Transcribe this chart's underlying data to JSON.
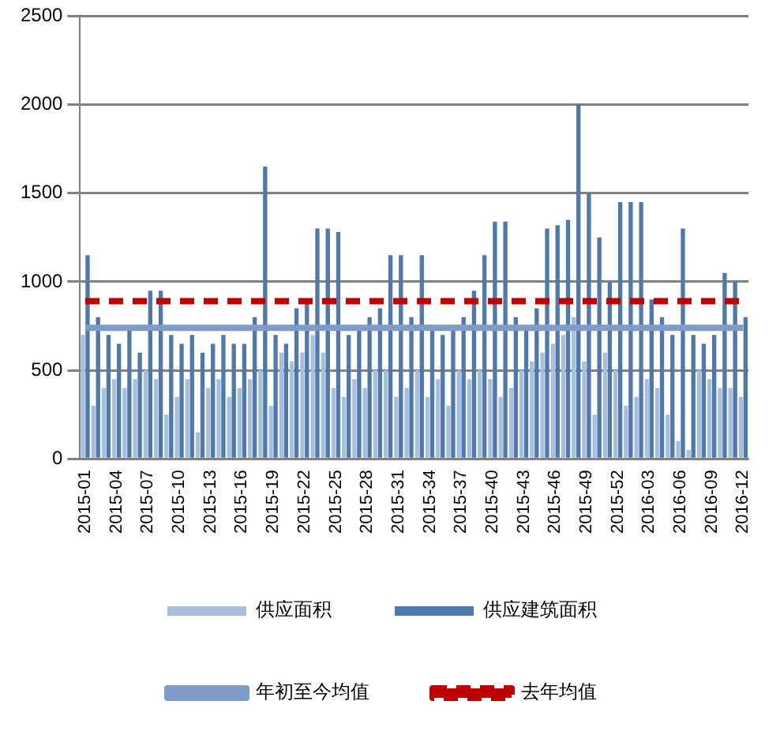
{
  "chart_data": {
    "type": "bar",
    "categories": [
      "2015-01",
      null,
      null,
      "2015-04",
      null,
      null,
      "2015-07",
      null,
      null,
      "2015-10",
      null,
      null,
      "2015-13",
      null,
      null,
      "2015-16",
      null,
      null,
      "2015-19",
      null,
      null,
      "2015-22",
      null,
      null,
      "2015-25",
      null,
      null,
      "2015-28",
      null,
      null,
      "2015-31",
      null,
      null,
      "2015-34",
      null,
      null,
      "2015-37",
      null,
      null,
      "2015-40",
      null,
      null,
      "2015-43",
      null,
      null,
      "2015-46",
      null,
      null,
      "2015-49",
      null,
      null,
      "2015-52",
      null,
      null,
      "2016-03",
      null,
      null,
      "2016-06",
      null,
      null,
      "2016-09",
      null,
      null,
      "2016-12"
    ],
    "series": [
      {
        "name": "供应面积",
        "color": "#a7bfdc",
        "values": [
          700,
          300,
          400,
          450,
          400,
          450,
          500,
          450,
          250,
          350,
          450,
          150,
          400,
          450,
          350,
          400,
          450,
          500,
          300,
          600,
          550,
          600,
          700,
          600,
          400,
          350,
          450,
          400,
          500,
          500,
          350,
          400,
          500,
          350,
          450,
          300,
          500,
          450,
          500,
          450,
          350,
          400,
          500,
          550,
          600,
          650,
          700,
          800,
          550,
          250,
          600,
          500,
          300,
          350,
          450,
          400,
          250,
          100,
          50,
          500,
          450,
          400,
          400,
          350
        ]
      },
      {
        "name": "供应建筑面积",
        "color": "#4f79ac",
        "values": [
          1150,
          800,
          700,
          650,
          750,
          600,
          950,
          950,
          700,
          650,
          700,
          600,
          650,
          700,
          650,
          650,
          800,
          1650,
          700,
          650,
          850,
          900,
          1300,
          1300,
          1280,
          700,
          750,
          800,
          850,
          1150,
          1150,
          800,
          1150,
          750,
          700,
          750,
          800,
          950,
          1150,
          1340,
          1340,
          800,
          750,
          850,
          1300,
          1320,
          1350,
          2000,
          1500,
          1250,
          1000,
          1450,
          1450,
          1450,
          900,
          800,
          700,
          1300,
          700,
          650,
          700,
          1050,
          1000,
          800
        ]
      },
      {
        "name": "年初至今均值",
        "type": "line",
        "color": "#7f9cc8",
        "line_style": "solid",
        "values": [
          740,
          740,
          740,
          740,
          740,
          740,
          740,
          740,
          740,
          740,
          740,
          740,
          740,
          740,
          740,
          740,
          740,
          740,
          740,
          740,
          740,
          740,
          740,
          740,
          740,
          740,
          740,
          740,
          740,
          740,
          740,
          740,
          740,
          740,
          740,
          740,
          740,
          740,
          740,
          740,
          740,
          740,
          740,
          740,
          740,
          740,
          740,
          740,
          740,
          740,
          740,
          740,
          740,
          740,
          740,
          740,
          740,
          740,
          740,
          740,
          740,
          740,
          740,
          740
        ]
      },
      {
        "name": "去年均值",
        "type": "line",
        "color": "#c00000",
        "line_style": "dashed",
        "values": [
          890,
          890,
          890,
          890,
          890,
          890,
          890,
          890,
          890,
          890,
          890,
          890,
          890,
          890,
          890,
          890,
          890,
          890,
          890,
          890,
          890,
          890,
          890,
          890,
          890,
          890,
          890,
          890,
          890,
          890,
          890,
          890,
          890,
          890,
          890,
          890,
          890,
          890,
          890,
          890,
          890,
          890,
          890,
          890,
          890,
          890,
          890,
          890,
          890,
          890,
          890,
          890,
          890,
          890,
          890,
          890,
          890,
          890,
          890,
          890,
          890,
          890,
          890,
          890
        ]
      }
    ],
    "ylim": [
      0,
      2500
    ],
    "yticks": [
      0,
      500,
      1000,
      1500,
      2000,
      2500
    ],
    "grid": "y",
    "legend": "bottom",
    "marker": "none"
  }
}
